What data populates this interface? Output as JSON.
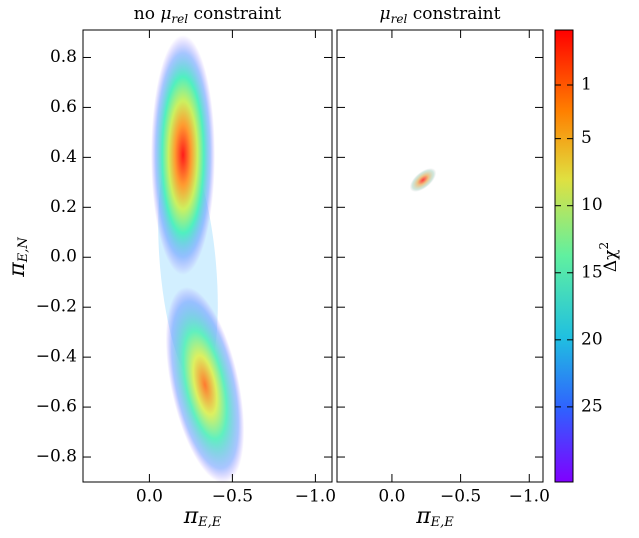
{
  "chart_data": [
    {
      "type": "density",
      "title_prefix": "no",
      "title_symbol": "μ",
      "title_subscript": "rel",
      "title_suffix": "constraint",
      "xlabel_symbol": "π",
      "xlabel_subscript": "E,E",
      "ylabel_symbol": "π",
      "ylabel_subscript": "E,N",
      "xlim": [
        0.4,
        -1.1
      ],
      "xticks": [
        {
          "value": 0,
          "label": "0.0"
        },
        {
          "value": -0.5,
          "label": "−0.5"
        },
        {
          "value": -1,
          "label": "−1.0"
        }
      ],
      "ylim": [
        -0.9,
        0.91
      ],
      "yticks": [
        {
          "value": -0.8,
          "label": "−0.8"
        },
        {
          "value": -0.6,
          "label": "−0.6"
        },
        {
          "value": -0.4,
          "label": "−0.4"
        },
        {
          "value": -0.2,
          "label": "−0.2"
        },
        {
          "value": 0,
          "label": "0.0"
        },
        0.2,
        0.4,
        0.6,
        0.8
      ]
    },
    {
      "type": "density",
      "title_symbol": "μ",
      "title_subscript": "rel",
      "title_suffix": "constraint",
      "xlabel_symbol": "π",
      "xlabel_subscript": "E,E",
      "xlim": [
        0.4,
        -1.1
      ],
      "xticks": [
        {
          "value": 0,
          "label": "0.0"
        },
        {
          "value": -0.5,
          "label": "−0.5"
        },
        {
          "value": -1,
          "label": "−1.0"
        }
      ],
      "ylim": [
        -0.9,
        0.91
      ],
      "yticks": [
        {
          "value": -0.8,
          "label": "−0.8"
        },
        {
          "value": -0.6,
          "label": "−0.6"
        },
        {
          "value": -0.4,
          "label": "−0.4"
        },
        {
          "value": -0.2,
          "label": "−0.2"
        },
        {
          "value": 0,
          "label": "0.0"
        },
        0.2,
        0.4,
        0.6,
        0.8
      ]
    },
    {
      "type": "colorbar",
      "label_symbol": "Δχ",
      "label_superscript": "2",
      "clim": [
        -3.1,
        30.6
      ],
      "ticks": [
        1,
        5,
        10,
        15,
        20,
        25
      ]
    }
  ]
}
